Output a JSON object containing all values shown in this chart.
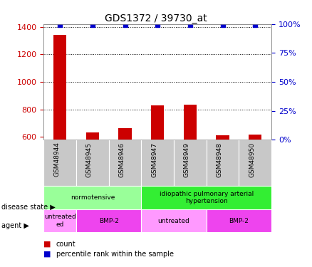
{
  "title": "GDS1372 / 39730_at",
  "samples": [
    "GSM48944",
    "GSM48945",
    "GSM48946",
    "GSM48947",
    "GSM48949",
    "GSM48948",
    "GSM48950"
  ],
  "count_values": [
    1340,
    635,
    665,
    830,
    835,
    610,
    620
  ],
  "percentile_values": [
    99,
    99,
    99,
    99,
    99,
    99,
    99
  ],
  "ylim_left": [
    580,
    1420
  ],
  "ylim_right": [
    0,
    100
  ],
  "yticks_left": [
    600,
    800,
    1000,
    1200,
    1400
  ],
  "yticks_right": [
    0,
    25,
    50,
    75,
    100
  ],
  "bar_color": "#cc0000",
  "dot_color": "#0000cc",
  "bg_color": "#ffffff",
  "sample_label_bg": "#c8c8c8",
  "disease_state_groups": [
    {
      "label": "normotensive",
      "start": 0,
      "end": 3,
      "color": "#99ff99"
    },
    {
      "label": "idiopathic pulmonary arterial\nhypertension",
      "start": 3,
      "end": 7,
      "color": "#33ee33"
    }
  ],
  "agent_groups": [
    {
      "label": "untreated\ned",
      "start": 0,
      "end": 1,
      "color": "#ff99ff"
    },
    {
      "label": "BMP-2",
      "start": 1,
      "end": 3,
      "color": "#ee44ee"
    },
    {
      "label": "untreated",
      "start": 3,
      "end": 5,
      "color": "#ff99ff"
    },
    {
      "label": "BMP-2",
      "start": 5,
      "end": 7,
      "color": "#ee44ee"
    }
  ],
  "disease_state_label": "disease state",
  "agent_label": "agent",
  "legend_count_label": "count",
  "legend_pct_label": "percentile rank within the sample",
  "grid_color": "#000000",
  "tick_color_left": "#cc0000",
  "tick_color_right": "#0000cc"
}
